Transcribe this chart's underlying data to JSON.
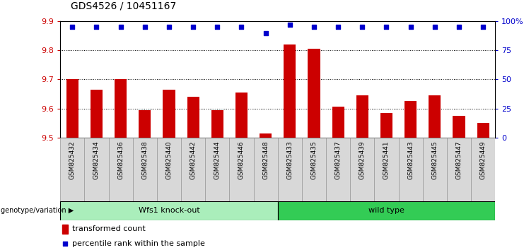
{
  "title": "GDS4526 / 10451167",
  "categories": [
    "GSM825432",
    "GSM825434",
    "GSM825436",
    "GSM825438",
    "GSM825440",
    "GSM825442",
    "GSM825444",
    "GSM825446",
    "GSM825448",
    "GSM825433",
    "GSM825435",
    "GSM825437",
    "GSM825439",
    "GSM825441",
    "GSM825443",
    "GSM825445",
    "GSM825447",
    "GSM825449"
  ],
  "bar_values": [
    9.7,
    9.665,
    9.7,
    9.595,
    9.665,
    9.64,
    9.595,
    9.655,
    9.515,
    9.82,
    9.805,
    9.605,
    9.645,
    9.585,
    9.625,
    9.645,
    9.575,
    9.55
  ],
  "percentile_values": [
    95,
    95,
    95,
    95,
    95,
    95,
    95,
    95,
    90,
    97,
    95,
    95,
    95,
    95,
    95,
    95,
    95,
    95
  ],
  "group1_label": "Wfs1 knock-out",
  "group2_label": "wild type",
  "group1_count": 9,
  "group2_count": 9,
  "bar_color": "#cc0000",
  "percentile_color": "#0000cc",
  "group1_bg": "#aaeebb",
  "group2_bg": "#33cc55",
  "xticklabel_bg": "#d8d8d8",
  "ylim_left": [
    9.5,
    9.9
  ],
  "ylim_right": [
    0,
    100
  ],
  "yticks_left": [
    9.5,
    9.6,
    9.7,
    9.8,
    9.9
  ],
  "yticks_right": [
    0,
    25,
    50,
    75,
    100
  ],
  "ytick_labels_right": [
    "0",
    "25",
    "50",
    "75",
    "100%"
  ],
  "grid_values": [
    9.6,
    9.7,
    9.8
  ],
  "legend_items": [
    "transformed count",
    "percentile rank within the sample"
  ],
  "genotype_label": "genotype/variation"
}
